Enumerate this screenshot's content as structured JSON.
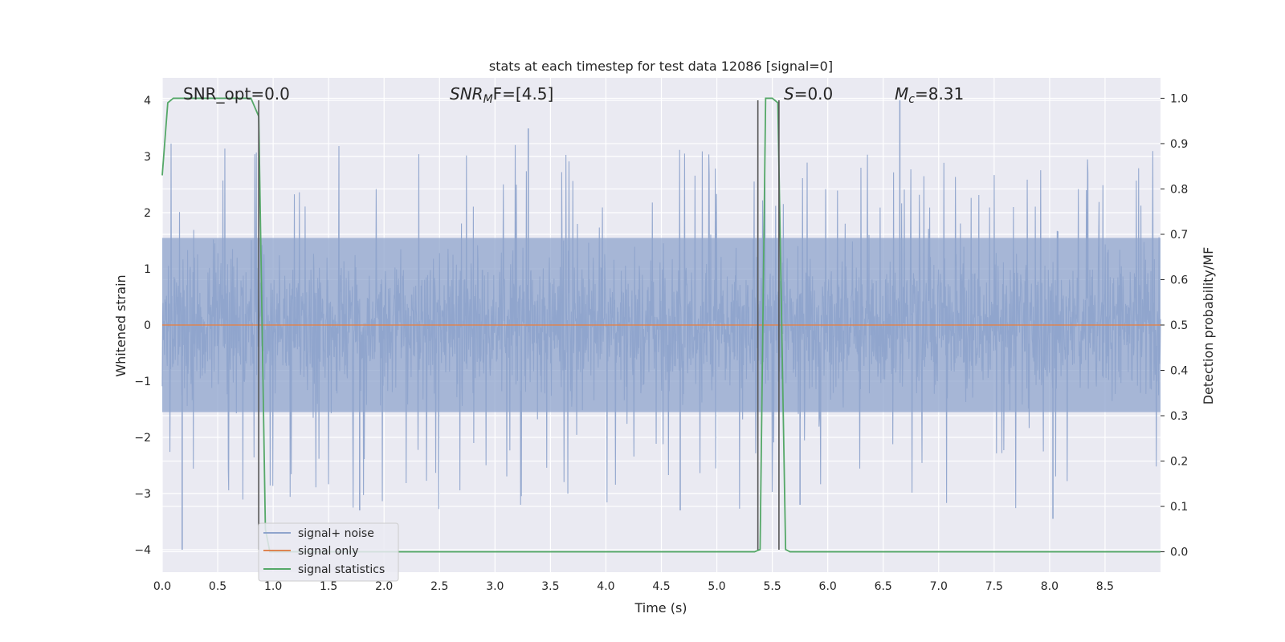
{
  "chart_data": {
    "type": "line",
    "title": "stats at each timestep for test data 12086 [signal=0]",
    "xlabel": "Time (s)",
    "ylabel": "Whitened strain",
    "y2label": "Detection probability/MF",
    "xlim": [
      0.0,
      9.0
    ],
    "ylim": [
      -4.4,
      4.4
    ],
    "y2lim": [
      -0.045,
      1.045
    ],
    "xticks": [
      "0.0",
      "0.5",
      "1.0",
      "1.5",
      "2.0",
      "2.5",
      "3.0",
      "3.5",
      "4.0",
      "4.5",
      "5.0",
      "5.5",
      "6.0",
      "6.5",
      "7.0",
      "7.5",
      "8.0",
      "8.5"
    ],
    "xtick_values": [
      0.0,
      0.5,
      1.0,
      1.5,
      2.0,
      2.5,
      3.0,
      3.5,
      4.0,
      4.5,
      5.0,
      5.5,
      6.0,
      6.5,
      7.0,
      7.5,
      8.0,
      8.5
    ],
    "yticks": [
      "−4",
      "−3",
      "−2",
      "−1",
      "0",
      "1",
      "2",
      "3",
      "4"
    ],
    "ytick_values": [
      -4,
      -3,
      -2,
      -1,
      0,
      1,
      2,
      3,
      4
    ],
    "y2ticks": [
      "0.0",
      "0.1",
      "0.2",
      "0.3",
      "0.4",
      "0.5",
      "0.6",
      "0.7",
      "0.8",
      "0.9",
      "1.0"
    ],
    "y2tick_values": [
      0.0,
      0.1,
      0.2,
      0.3,
      0.4,
      0.5,
      0.6,
      0.7,
      0.8,
      0.9,
      1.0
    ],
    "grid": true,
    "legend_placement": "lower-left",
    "annotations": {
      "snr_opt": "SNR_opt=0.0",
      "snr_mf_base": "SNR",
      "snr_mf_sub": "M",
      "snr_mf_rest": "F=[4.5]",
      "s_label_italic": "S",
      "s_label_rest": "=0.0",
      "mc_base": "M",
      "mc_sub": "c",
      "mc_rest": "=8.31"
    },
    "series": [
      {
        "name": "signal+ noise",
        "color": "#8fa4cc",
        "style": "noise",
        "x_range": [
          0.0,
          9.0
        ],
        "typical_abs": 1.6,
        "peak_values": [
          {
            "x": 0.18,
            "y": -4.0
          },
          {
            "x": 3.3,
            "y": 3.5
          },
          {
            "x": 6.65,
            "y": 4.0
          },
          {
            "x": 8.03,
            "y": -3.45
          },
          {
            "x": 1.78,
            "y": -3.3
          },
          {
            "x": 4.67,
            "y": -3.3
          },
          {
            "x": 5.75,
            "y": -3.2
          }
        ]
      },
      {
        "name": "signal only",
        "color": "#dd8452",
        "x": [
          0.0,
          9.0
        ],
        "y": [
          0.0,
          0.0
        ]
      },
      {
        "name": "signal statistics",
        "color": "#55a868",
        "axis": "right",
        "x": [
          0.0,
          0.05,
          0.1,
          0.8,
          0.87,
          0.93,
          0.97,
          5.34,
          5.39,
          5.44,
          5.5,
          5.55,
          5.62,
          5.66,
          9.0
        ],
        "y": [
          0.83,
          0.99,
          1.0,
          1.0,
          0.96,
          0.05,
          0.0,
          0.0,
          0.005,
          1.0,
          1.0,
          0.99,
          0.005,
          0.0,
          0.0
        ]
      }
    ],
    "vertical_markers": [
      0.87,
      5.37,
      5.56
    ],
    "marker_color": "#555555"
  }
}
